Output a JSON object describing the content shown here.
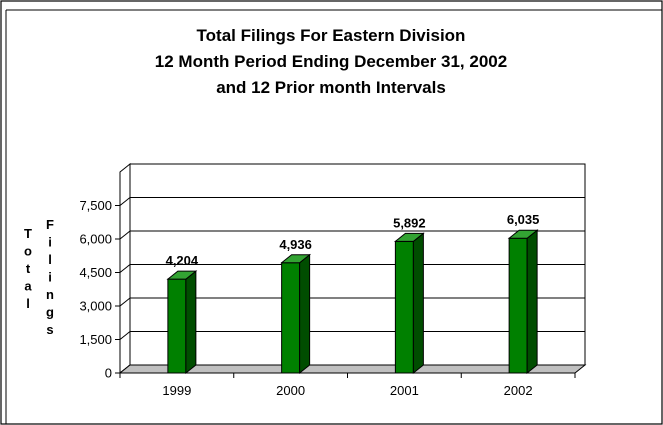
{
  "chart_data": {
    "type": "bar",
    "title": [
      "Total Filings For Eastern Division",
      "12 Month Period Ending December 31, 2002",
      "and 12 Prior month Intervals"
    ],
    "ylabel": [
      "Total",
      "Filings"
    ],
    "xlabel": "",
    "categories": [
      "1999",
      "2000",
      "2001",
      "2002"
    ],
    "values": [
      4204,
      4936,
      5892,
      6035
    ],
    "value_labels": [
      "4,204",
      "4,936",
      "5,892",
      "6,035"
    ],
    "ylim": [
      0,
      9000
    ],
    "yticks": [
      0,
      1500,
      3000,
      4500,
      6000,
      7500
    ],
    "ytick_labels": [
      "0",
      "1,500",
      "3,000",
      "4,500",
      "6,000",
      "7,500"
    ],
    "grid": true,
    "legend": "none",
    "style": "3d-bars",
    "colors": {
      "bar_front": "#008000",
      "bar_side": "#004d00",
      "bar_top": "#33a333",
      "floor": "#c0c0c0",
      "gridline": "#000000"
    }
  }
}
